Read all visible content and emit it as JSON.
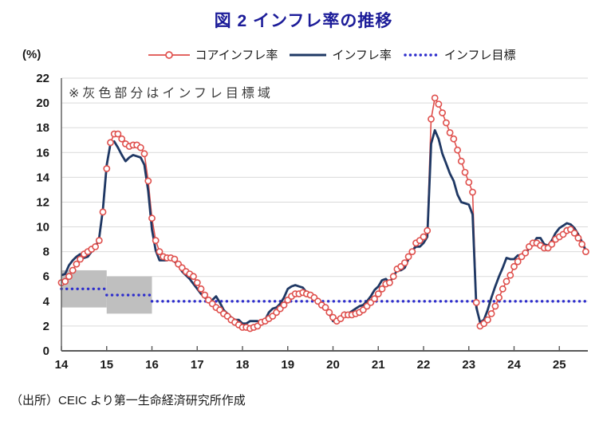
{
  "title": "図 2  インフレ率の推移",
  "annotation": "※灰色部分はインフレ目標域",
  "source": "（出所）CEIC より第一生命経済研究所作成",
  "colors": {
    "title": "#1C1C99",
    "core": "#DF4F4C",
    "cpi": "#1F3864",
    "target": "#2E2ECC",
    "band": "#BFBFBF",
    "grid": "#DADADA",
    "axis": "#595959",
    "tick_text": "#1A1A1A"
  },
  "legend": [
    {
      "label": "コアインフレ率",
      "color": "#DF4F4C",
      "style": "line-circle"
    },
    {
      "label": "インフレ率",
      "color": "#1F3864",
      "style": "line"
    },
    {
      "label": "インフレ目標",
      "color": "#2E2ECC",
      "style": "dotted"
    }
  ],
  "y_axis": {
    "unit_label": "(%)",
    "min": 0,
    "max": 22,
    "step": 2,
    "tick_labels": [
      "0",
      "2",
      "4",
      "6",
      "8",
      "10",
      "12",
      "14",
      "16",
      "18",
      "20",
      "22"
    ]
  },
  "x_axis": {
    "tick_labels": [
      "14",
      "15",
      "16",
      "17",
      "18",
      "19",
      "20",
      "21",
      "22",
      "23",
      "24",
      "25"
    ]
  },
  "chart_data": {
    "type": "line",
    "frequency": "monthly",
    "x_start": "2014-01",
    "x_end": "2025-08",
    "ylim": [
      0,
      22
    ],
    "grid": true,
    "legend_position": "top",
    "series": [
      {
        "name": "コアインフレ率",
        "marker": "open-circle",
        "values": [
          5.5,
          5.6,
          6.0,
          6.5,
          7.0,
          7.4,
          7.8,
          8.0,
          8.2,
          8.4,
          8.9,
          11.2,
          14.7,
          16.8,
          17.5,
          17.5,
          17.1,
          16.7,
          16.5,
          16.6,
          16.6,
          16.4,
          15.9,
          13.7,
          10.7,
          8.9,
          8.0,
          7.6,
          7.5,
          7.5,
          7.4,
          7.0,
          6.7,
          6.4,
          6.2,
          6.0,
          5.5,
          5.0,
          4.5,
          4.1,
          3.8,
          3.5,
          3.3,
          3.0,
          2.8,
          2.5,
          2.3,
          2.1,
          1.9,
          1.9,
          1.8,
          1.9,
          2.0,
          2.3,
          2.4,
          2.6,
          2.8,
          3.1,
          3.4,
          3.7,
          4.1,
          4.4,
          4.6,
          4.6,
          4.7,
          4.6,
          4.5,
          4.3,
          4.0,
          3.7,
          3.5,
          3.1,
          2.7,
          2.4,
          2.6,
          2.9,
          2.9,
          2.9,
          3.0,
          3.1,
          3.3,
          3.6,
          3.9,
          4.2,
          4.6,
          5.0,
          5.4,
          5.5,
          6.0,
          6.6,
          6.8,
          7.1,
          7.6,
          8.0,
          8.7,
          8.9,
          9.2,
          9.7,
          18.7,
          20.4,
          19.9,
          19.2,
          18.4,
          17.6,
          17.1,
          16.2,
          15.3,
          14.4,
          13.6,
          12.8,
          3.9,
          2.0,
          2.2,
          2.5,
          3.0,
          3.6,
          4.3,
          5.0,
          5.6,
          6.1,
          6.8,
          7.2,
          7.6,
          7.9,
          8.4,
          8.7,
          8.7,
          8.5,
          8.3,
          8.3,
          8.6,
          9.0,
          9.2,
          9.4,
          9.7,
          9.8,
          9.5,
          9.1,
          8.6,
          8.0
        ]
      },
      {
        "name": "インフレ率",
        "marker": "none",
        "values": [
          6.1,
          6.2,
          6.9,
          7.3,
          7.6,
          7.8,
          7.5,
          7.6,
          8.0,
          8.3,
          9.1,
          11.4,
          15.0,
          16.7,
          16.9,
          16.4,
          15.8,
          15.3,
          15.6,
          15.8,
          15.7,
          15.6,
          15.0,
          12.9,
          9.8,
          8.1,
          7.3,
          7.3,
          7.3,
          7.5,
          7.2,
          6.9,
          6.4,
          6.1,
          5.8,
          5.4,
          5.0,
          4.6,
          4.3,
          4.1,
          4.1,
          4.4,
          3.9,
          3.3,
          3.0,
          2.7,
          2.5,
          2.5,
          2.2,
          2.2,
          2.4,
          2.4,
          2.4,
          2.3,
          2.5,
          3.1,
          3.4,
          3.5,
          3.8,
          4.3,
          5.0,
          5.2,
          5.3,
          5.2,
          5.1,
          4.7,
          4.6,
          4.3,
          4.0,
          3.8,
          3.5,
          3.0,
          2.4,
          2.3,
          2.5,
          3.1,
          3.0,
          3.2,
          3.4,
          3.6,
          3.7,
          4.0,
          4.4,
          4.9,
          5.2,
          5.7,
          5.8,
          5.5,
          6.0,
          6.5,
          6.5,
          6.7,
          7.4,
          8.1,
          8.4,
          8.4,
          8.7,
          9.2,
          16.7,
          17.8,
          17.1,
          15.9,
          15.1,
          14.3,
          13.7,
          12.6,
          12.0,
          11.9,
          11.8,
          11.0,
          3.5,
          2.3,
          2.5,
          3.3,
          4.3,
          5.2,
          6.0,
          6.7,
          7.5,
          7.4,
          7.4,
          7.7,
          7.7,
          7.8,
          8.3,
          8.6,
          9.1,
          9.1,
          8.6,
          8.5,
          8.9,
          9.5,
          9.9,
          10.1,
          10.3,
          10.2,
          9.9,
          9.4,
          8.8,
          8.1
        ]
      }
    ],
    "target_line_steps": [
      {
        "start": "2014-01",
        "end": "2015-01",
        "value": 5.0
      },
      {
        "start": "2015-01",
        "end": "2016-01",
        "value": 4.5
      },
      {
        "start": "2016-01",
        "end": "2025-12",
        "value": 4.0
      }
    ],
    "target_band": [
      {
        "start": "2014-01",
        "end": "2015-01",
        "low": 3.5,
        "high": 6.5
      },
      {
        "start": "2015-01",
        "end": "2016-01",
        "low": 3.0,
        "high": 6.0
      }
    ]
  }
}
